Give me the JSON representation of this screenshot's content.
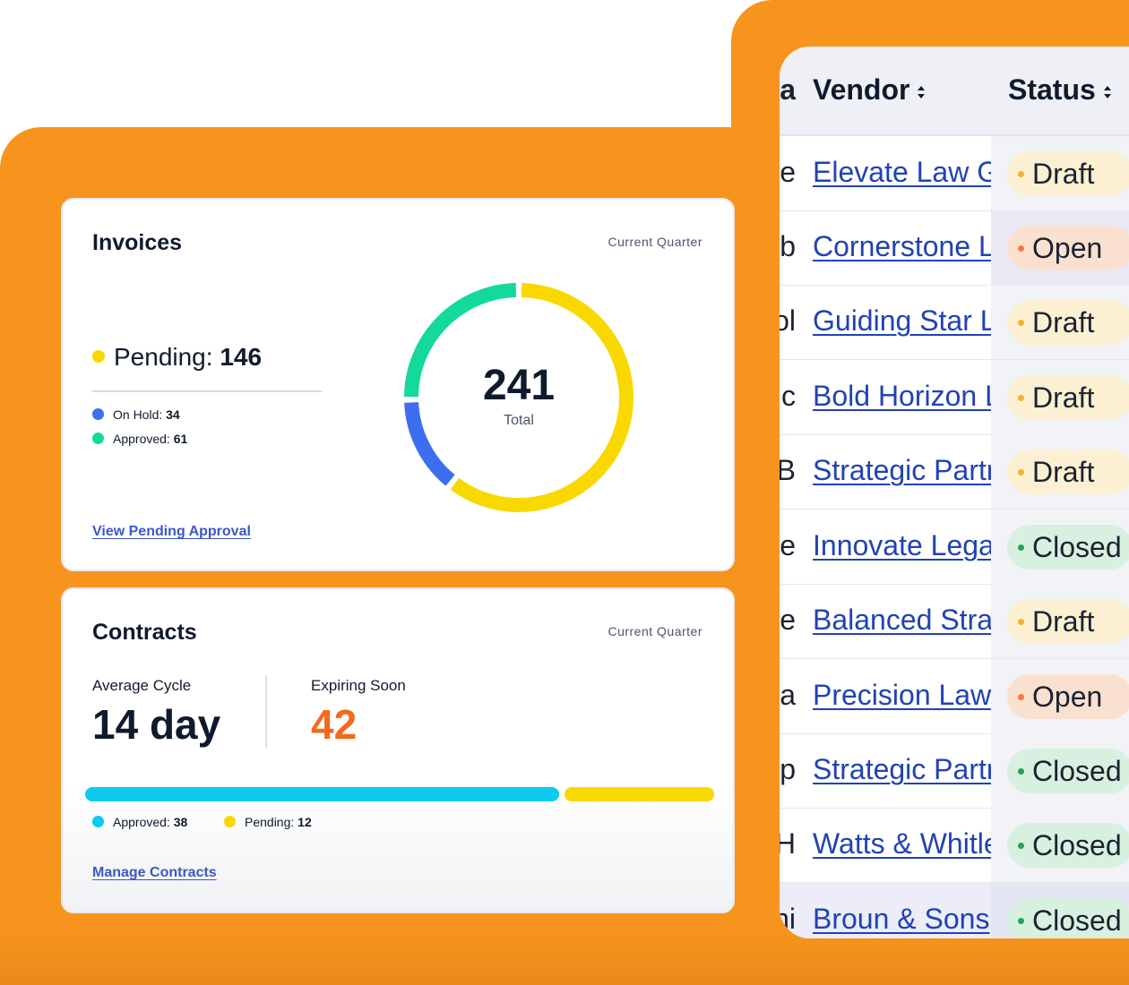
{
  "colors": {
    "accent_orange": "#f7941d",
    "pending_yellow": "#f9d800",
    "on_hold_blue": "#3d6ef0",
    "approved_green": "#14d99c",
    "contracts_approved_cyan": "#0ccaf0",
    "expiring_orange": "#f26a1b",
    "link_blue": "#2142b5"
  },
  "invoices": {
    "title": "Invoices",
    "period": "Current Quarter",
    "pending_label": "Pending:",
    "pending_value": "146",
    "on_hold_label": "On Hold:",
    "on_hold_value": "34",
    "approved_label": "Approved:",
    "approved_value": "61",
    "total_value": "241",
    "total_label": "Total",
    "link": "View Pending Approval",
    "donut_segments": [
      {
        "name": "Pending",
        "value": 146,
        "color": "#f9d800"
      },
      {
        "name": "On Hold",
        "value": 34,
        "color": "#3d6ef0"
      },
      {
        "name": "Approved",
        "value": 61,
        "color": "#14d99c"
      }
    ]
  },
  "contracts": {
    "title": "Contracts",
    "period": "Current Quarter",
    "avg_cycle_label": "Average Cycle",
    "avg_cycle_value": "14 day",
    "expiring_label": "Expiring Soon",
    "expiring_value": "42",
    "approved_label": "Approved:",
    "approved_value": "38",
    "pending_label": "Pending:",
    "pending_value": "12",
    "approved_count": 38,
    "pending_count": 12,
    "link": "Manage Contracts"
  },
  "table": {
    "columns": {
      "vendor": "Vendor",
      "status": "Status",
      "clipped_prev": "ea"
    },
    "rows": [
      {
        "clip": "re",
        "vendor": "Elevate Law Group",
        "status": "Draft",
        "type": "draft"
      },
      {
        "clip": "ib",
        "vendor": "Cornerstone Legal",
        "status": "Open",
        "type": "open"
      },
      {
        "clip": "ol",
        "vendor": "Guiding Star Legal",
        "status": "Draft",
        "type": "draft"
      },
      {
        "clip": "c",
        "vendor": "Bold Horizon Law",
        "status": "Draft",
        "type": "draft"
      },
      {
        "clip": "B",
        "vendor": "Strategic Partners",
        "status": "Draft",
        "type": "draft"
      },
      {
        "clip": "re",
        "vendor": "Innovate Legal",
        "status": "Closed",
        "type": "closed"
      },
      {
        "clip": "lle",
        "vendor": "Balanced Strategies",
        "status": "Draft",
        "type": "draft"
      },
      {
        "clip": "pa",
        "vendor": "Precision Law",
        "status": "Open",
        "type": "open"
      },
      {
        "clip": "p",
        "vendor": "Strategic Partners",
        "status": "Closed",
        "type": "closed"
      },
      {
        "clip": "H",
        "vendor": "Watts & Whitley",
        "status": "Closed",
        "type": "closed"
      },
      {
        "clip": "ni",
        "vendor": "Broun & Sons",
        "status": "Closed",
        "type": "closed"
      }
    ]
  }
}
